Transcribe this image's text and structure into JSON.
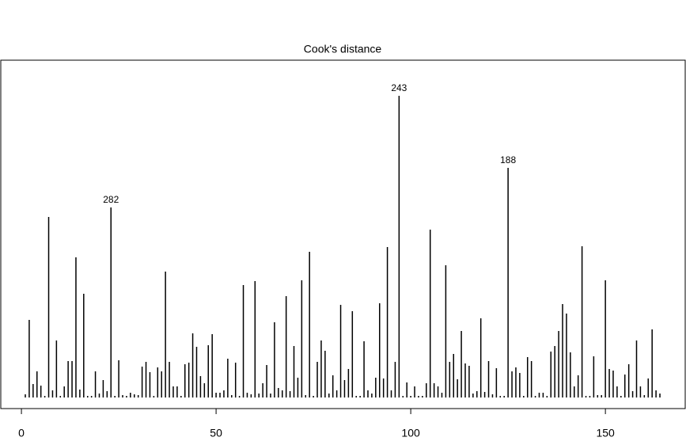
{
  "chart_data": {
    "type": "spike",
    "title": "Cook's distance",
    "x": [
      1,
      2,
      3,
      4,
      5,
      6,
      7,
      8,
      9,
      10,
      11,
      12,
      13,
      14,
      15,
      16,
      17,
      18,
      19,
      20,
      21,
      22,
      23,
      24,
      25,
      26,
      27,
      28,
      29,
      30,
      31,
      32,
      33,
      34,
      35,
      36,
      37,
      38,
      39,
      40,
      41,
      42,
      43,
      44,
      45,
      46,
      47,
      48,
      49,
      50,
      51,
      52,
      53,
      54,
      55,
      56,
      57,
      58,
      59,
      60,
      61,
      62,
      63,
      64,
      65,
      66,
      67,
      68,
      69,
      70,
      71,
      72,
      73,
      74,
      75,
      76,
      77,
      78,
      79,
      80,
      81,
      82,
      83,
      84,
      85,
      86,
      87,
      88,
      89,
      90,
      91,
      92,
      93,
      94,
      95,
      96,
      97,
      98,
      99,
      100,
      101,
      102,
      103,
      104,
      105,
      106,
      107,
      108,
      109,
      110,
      111,
      112,
      113,
      114,
      115,
      116,
      117,
      118,
      119,
      120,
      121,
      122,
      123,
      124,
      125,
      126,
      127,
      128,
      129,
      130,
      131,
      132,
      133,
      134,
      135,
      136,
      137,
      138,
      139,
      140,
      141,
      142,
      143,
      144,
      145,
      146,
      147,
      148,
      149,
      150,
      151,
      152,
      153,
      154,
      155,
      156,
      157,
      158,
      159,
      160,
      161,
      162,
      163,
      164
    ],
    "values": [
      4,
      98,
      17,
      33,
      15,
      2,
      228,
      9,
      72,
      2,
      14,
      46,
      46,
      177,
      10,
      131,
      2,
      2,
      33,
      5,
      22,
      8,
      240,
      2,
      47,
      3,
      2,
      6,
      4,
      3,
      39,
      45,
      32,
      2,
      38,
      33,
      159,
      45,
      14,
      14,
      2,
      42,
      44,
      81,
      64,
      27,
      18,
      66,
      80,
      6,
      6,
      9,
      49,
      3,
      44,
      2,
      142,
      6,
      4,
      147,
      5,
      18,
      41,
      5,
      95,
      12,
      9,
      128,
      8,
      65,
      25,
      148,
      3,
      184,
      2,
      45,
      72,
      59,
      5,
      28,
      9,
      117,
      22,
      36,
      109,
      2,
      2,
      71,
      9,
      5,
      25,
      119,
      24,
      190,
      9,
      45,
      381,
      2,
      19,
      2,
      14,
      2,
      2,
      18,
      212,
      18,
      14,
      6,
      167,
      45,
      55,
      23,
      84,
      43,
      40,
      5,
      8,
      100,
      7,
      46,
      4,
      37,
      2,
      2,
      290,
      33,
      38,
      31,
      2,
      51,
      46,
      2,
      6,
      6,
      2,
      58,
      65,
      84,
      118,
      106,
      57,
      14,
      28,
      191,
      2,
      2,
      52,
      3,
      3,
      148,
      36,
      34,
      14,
      2,
      29,
      42,
      8,
      72,
      14,
      3,
      24,
      86,
      9,
      5
    ],
    "color": "#000000",
    "annotations": [
      {
        "label": "282",
        "x": 23
      },
      {
        "label": "243",
        "x": 97
      },
      {
        "label": "188",
        "x": 125
      }
    ],
    "xlim": [
      -5.3,
      170.5
    ],
    "ylim": [
      -14,
      426
    ],
    "xticks": [
      0,
      50,
      100,
      150
    ]
  }
}
